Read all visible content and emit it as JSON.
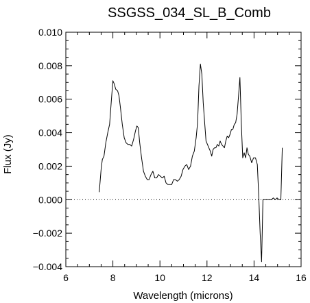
{
  "chart_data": {
    "type": "line",
    "title": "SSGSS_034_SL_B_Comb",
    "xlabel": "Wavelength (microns)",
    "ylabel": "Flux (Jy)",
    "xlim": [
      6,
      16
    ],
    "ylim": [
      -0.004,
      0.01
    ],
    "x_ticks": [
      6,
      8,
      10,
      12,
      14,
      16
    ],
    "x_tick_labels": [
      "6",
      "8",
      "10",
      "12",
      "14",
      "16"
    ],
    "y_ticks": [
      -0.004,
      -0.002,
      0.0,
      0.002,
      0.004,
      0.006,
      0.008,
      0.01
    ],
    "y_tick_labels": [
      "−0.004",
      "−0.002",
      "0.000",
      "0.002",
      "0.004",
      "0.006",
      "0.008",
      "0.010"
    ],
    "zero_line": "dotted",
    "grid": false,
    "series": [
      {
        "x": [
          7.42,
          7.5,
          7.55,
          7.62,
          7.7,
          7.78,
          7.86,
          7.94,
          8.0,
          8.06,
          8.12,
          8.2,
          8.26,
          8.32,
          8.4,
          8.48,
          8.56,
          8.64,
          8.72,
          8.8,
          8.88,
          8.96,
          9.02,
          9.08,
          9.14,
          9.22,
          9.3,
          9.38,
          9.46,
          9.54,
          9.62,
          9.7,
          9.78,
          9.86,
          9.94,
          10.02,
          10.1,
          10.18,
          10.26,
          10.34,
          10.42,
          10.5,
          10.58,
          10.66,
          10.74,
          10.82,
          10.9,
          10.98,
          11.06,
          11.14,
          11.22,
          11.3,
          11.38,
          11.46,
          11.54,
          11.6,
          11.66,
          11.72,
          11.78,
          11.84,
          11.9,
          11.96,
          12.02,
          12.08,
          12.14,
          12.2,
          12.26,
          12.32,
          12.38,
          12.44,
          12.5,
          12.56,
          12.62,
          12.68,
          12.74,
          12.8,
          12.86,
          12.92,
          12.98,
          13.04,
          13.1,
          13.16,
          13.22,
          13.28,
          13.34,
          13.4,
          13.46,
          13.52,
          13.58,
          13.64,
          13.7,
          13.76,
          13.82,
          13.9,
          13.98,
          14.06,
          14.14,
          14.2,
          14.26,
          14.32,
          14.38,
          14.44,
          14.5,
          14.58,
          14.66,
          14.74,
          14.82,
          14.9,
          14.98,
          15.06,
          15.14,
          15.2
        ],
        "y": [
          0.00045,
          0.0018,
          0.0024,
          0.0026,
          0.0034,
          0.004,
          0.0045,
          0.006,
          0.0071,
          0.0069,
          0.0066,
          0.0065,
          0.0062,
          0.0055,
          0.0045,
          0.0037,
          0.0034,
          0.0033,
          0.0033,
          0.0032,
          0.0036,
          0.0041,
          0.0044,
          0.0043,
          0.0034,
          0.0025,
          0.0017,
          0.0014,
          0.0012,
          0.0012,
          0.0015,
          0.0017,
          0.0013,
          0.0013,
          0.0015,
          0.0014,
          0.0013,
          0.0014,
          0.001,
          0.0009,
          0.0009,
          0.0009,
          0.0012,
          0.0012,
          0.0011,
          0.0012,
          0.0014,
          0.0018,
          0.002,
          0.0021,
          0.0018,
          0.002,
          0.0026,
          0.0029,
          0.0037,
          0.0046,
          0.0068,
          0.0081,
          0.0075,
          0.0058,
          0.0046,
          0.0035,
          0.0033,
          0.0031,
          0.0029,
          0.0026,
          0.003,
          0.0031,
          0.0031,
          0.0033,
          0.0032,
          0.0035,
          0.0033,
          0.0032,
          0.0031,
          0.0035,
          0.0038,
          0.0037,
          0.0039,
          0.0042,
          0.0042,
          0.0045,
          0.0046,
          0.0051,
          0.0062,
          0.0073,
          0.0045,
          0.0025,
          0.0028,
          0.0025,
          0.0031,
          0.0027,
          0.0026,
          0.0022,
          0.0025,
          0.0025,
          0.0021,
          0.0002,
          -0.002,
          -0.0037,
          0.0,
          0.0,
          0.0,
          0.0,
          0.0,
          0.0,
          0.0001,
          0.0,
          0.0001,
          0.0,
          0.0,
          0.0031
        ]
      }
    ]
  }
}
